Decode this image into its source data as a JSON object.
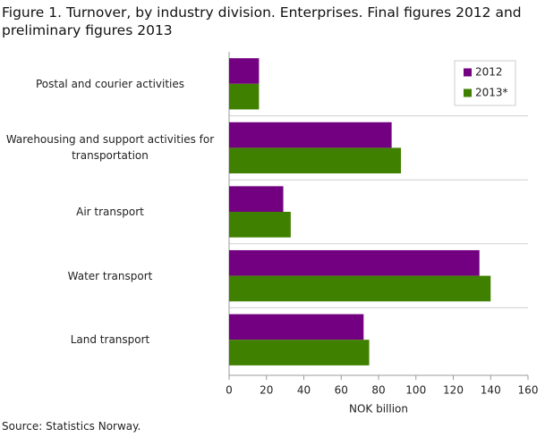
{
  "chart_data": {
    "type": "bar",
    "orientation": "horizontal",
    "title": "Figure 1. Turnover, by industry division. Enterprises. Final figures 2012 and preliminary figures 2013",
    "categories": [
      "Postal and courier activities",
      "Warehousing and support activities for transportation",
      "Air transport",
      "Water transport",
      "Land transport"
    ],
    "series": [
      {
        "name": "2012",
        "color": "#720080",
        "values": [
          16,
          87,
          29,
          134,
          72
        ]
      },
      {
        "name": "2013*",
        "color": "#408000",
        "values": [
          16,
          92,
          33,
          140,
          75
        ]
      }
    ],
    "xlabel": "NOK billion",
    "xlim": [
      0,
      160
    ],
    "xticks": [
      0,
      20,
      40,
      60,
      80,
      100,
      120,
      140,
      160
    ],
    "legend": "top-right",
    "source": "Source: Statistics Norway."
  }
}
